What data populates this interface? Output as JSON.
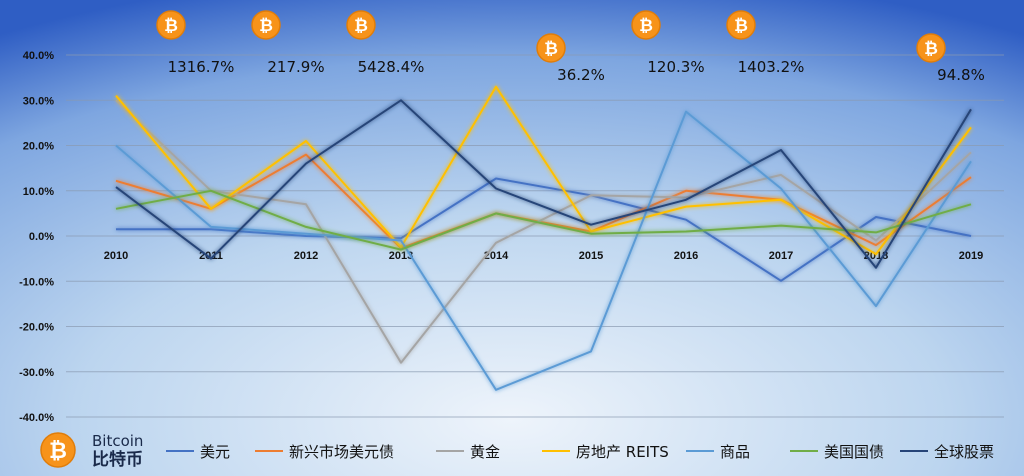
{
  "colors": {
    "background_center": "#e8f1fa",
    "background_mid": "#a9c9ea",
    "background_edge": "#2f5ec4",
    "bitcoin_orange": "#f7931a",
    "bitcoin_orange_dark": "#e07d0a"
  },
  "brand": {
    "icon": "bitcoin-icon",
    "name_en": "Bitcoin",
    "name_cn": "比特币"
  },
  "chart_data": {
    "type": "line",
    "categories": [
      "2010",
      "2011",
      "2012",
      "2013",
      "2014",
      "2015",
      "2016",
      "2017",
      "2018",
      "2019"
    ],
    "ylim": [
      -0.4,
      0.4
    ],
    "yticks": [
      "40.0%",
      "30.0%",
      "20.0%",
      "10.0%",
      "0.0%",
      "-10.0%",
      "-20.0%",
      "-30.0%",
      "-40.0%"
    ],
    "grid": true,
    "legend_position": "bottom",
    "series": [
      {
        "name": "美元",
        "color": "#4472c4",
        "values": [
          0.015,
          0.015,
          0.0,
          -0.005,
          0.127,
          0.09,
          0.036,
          -0.099,
          0.042,
          0.0
        ]
      },
      {
        "name": "新兴市场美元债",
        "color": "#ed7d31",
        "values": [
          0.122,
          0.06,
          0.18,
          -0.027,
          0.05,
          0.01,
          0.1,
          0.08,
          -0.02,
          0.13
        ]
      },
      {
        "name": "黄金",
        "color": "#a5a5a5",
        "values": [
          0.3,
          0.1,
          0.07,
          -0.28,
          -0.015,
          0.09,
          0.085,
          0.135,
          -0.01,
          0.185
        ]
      },
      {
        "name": "房地产 REITS",
        "color": "#ffc000",
        "values": [
          0.31,
          0.06,
          0.21,
          -0.025,
          0.33,
          0.01,
          0.065,
          0.08,
          -0.04,
          0.24
        ]
      },
      {
        "name": "商品",
        "color": "#5b9bd5",
        "values": [
          0.2,
          0.02,
          0.005,
          -0.01,
          -0.34,
          -0.255,
          0.275,
          0.105,
          -0.155,
          0.165
        ]
      },
      {
        "name": "美国国债",
        "color": "#70ad47",
        "values": [
          0.06,
          0.1,
          0.02,
          -0.03,
          0.05,
          0.005,
          0.01,
          0.023,
          0.008,
          0.07
        ]
      },
      {
        "name": "全球股票",
        "color": "#264478",
        "values": [
          0.108,
          -0.05,
          0.16,
          0.3,
          0.105,
          0.025,
          0.08,
          0.19,
          -0.07,
          0.28
        ]
      }
    ],
    "annotations": [
      {
        "category": "2011",
        "label": "1316.7%",
        "level": "upper"
      },
      {
        "category": "2012",
        "label": "217.9%",
        "level": "upper"
      },
      {
        "category": "2013",
        "label": "5428.4%",
        "level": "upper"
      },
      {
        "category": "2015",
        "label": "36.2%",
        "level": "lower"
      },
      {
        "category": "2016",
        "label": "120.3%",
        "level": "upper"
      },
      {
        "category": "2017",
        "label": "1403.2%",
        "level": "upper"
      },
      {
        "category": "2019",
        "label": "94.8%",
        "level": "lower"
      }
    ]
  }
}
